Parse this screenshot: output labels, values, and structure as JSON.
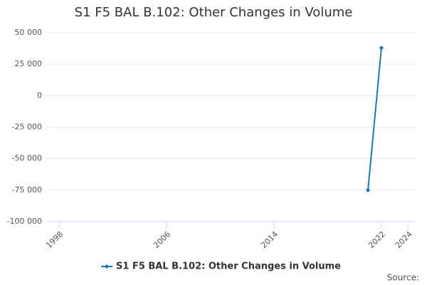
{
  "chart_data": {
    "type": "line",
    "title": "S1 F5 BAL B.102: Other Changes in Volume",
    "x": [
      2021,
      2022
    ],
    "series": [
      {
        "name": "S1 F5 BAL B.102: Other Changes in Volume",
        "color": "#1a7ab5",
        "values": [
          -75000,
          38000
        ]
      }
    ],
    "xlim": [
      1997.05,
      2024.6
    ],
    "xticks": [
      1998,
      2006,
      2014,
      2022,
      2024
    ],
    "ylim": [
      -100000,
      50000
    ],
    "yticks": [
      {
        "value": -100000,
        "label": "-100 000"
      },
      {
        "value": -75000,
        "label": "-75 000"
      },
      {
        "value": -50000,
        "label": "-50 000"
      },
      {
        "value": -25000,
        "label": "-25 000"
      },
      {
        "value": 0,
        "label": "0"
      },
      {
        "value": 25000,
        "label": "25 000"
      },
      {
        "value": 50000,
        "label": "50 000"
      }
    ],
    "grid": true,
    "source": "Source:"
  }
}
